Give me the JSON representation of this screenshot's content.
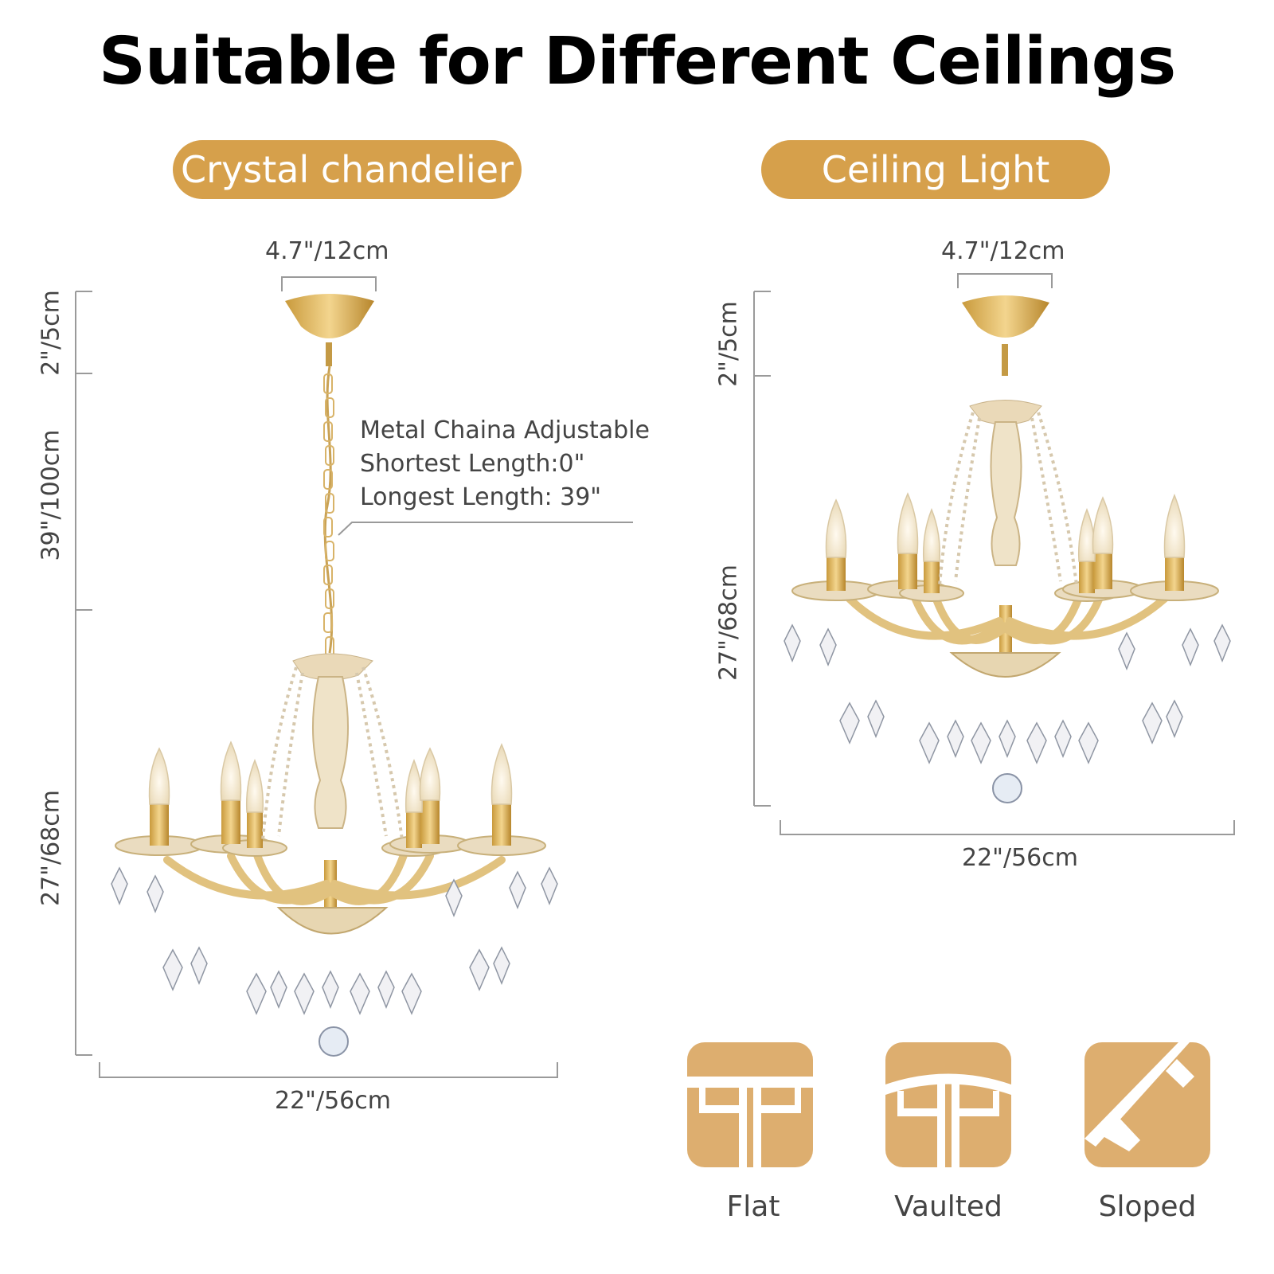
{
  "title": "Suitable for Different Ceilings",
  "accent_color": "#d6a04b",
  "icon_color": "#ddae6f",
  "left_panel": {
    "label": "Crystal chandelier",
    "top_width": "4.7\"/12cm",
    "canopy_height": "2\"/5cm",
    "chain_length": "39\"/100cm",
    "body_height": "27\"/68cm",
    "width": "22\"/56cm",
    "chain_note": [
      "Metal Chaina Adjustable",
      "Shortest Length:0\"",
      "Longest Length: 39\""
    ]
  },
  "right_panel": {
    "label": "Ceiling Light",
    "top_width": "4.7\"/12cm",
    "canopy_height": "2\"/5cm",
    "body_height": "27\"/68cm",
    "width": "22\"/56cm"
  },
  "ceilings": [
    {
      "label": "Flat",
      "icon": "flat-ceiling-icon"
    },
    {
      "label": "Vaulted",
      "icon": "vaulted-ceiling-icon"
    },
    {
      "label": "Sloped",
      "icon": "sloped-ceiling-icon"
    }
  ]
}
